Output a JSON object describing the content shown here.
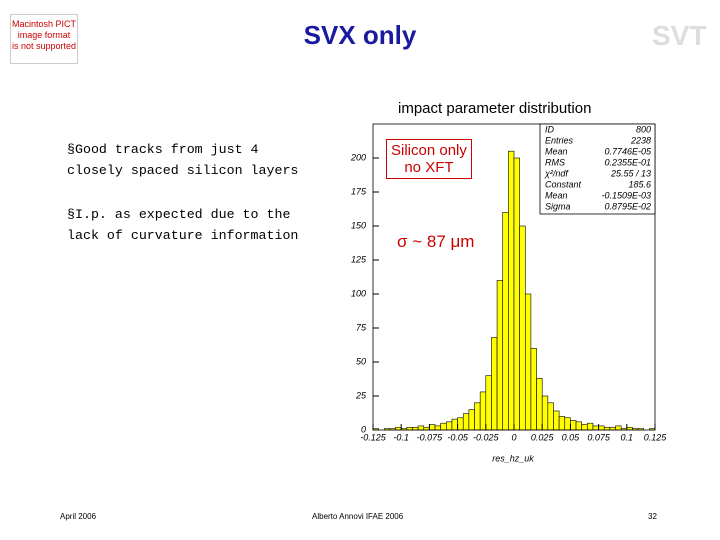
{
  "header": {
    "placeholder_image": [
      "Macintosh PICT",
      "image format",
      "is not supported"
    ],
    "title": "SVX only",
    "logo": "SVT"
  },
  "bullets": [
    "§Good tracks from just 4 closely spaced silicon layers",
    "§I.p. as expected due to the lack of curvature information"
  ],
  "chart_data": {
    "type": "histogram",
    "title": "impact parameter distribution",
    "bins": [
      -0.125,
      -0.12,
      -0.115,
      -0.11,
      -0.105,
      -0.1,
      -0.095,
      -0.09,
      -0.085,
      -0.08,
      -0.075,
      -0.07,
      -0.065,
      -0.06,
      -0.055,
      -0.05,
      -0.045,
      -0.04,
      -0.035,
      -0.03,
      -0.025,
      -0.02,
      -0.015,
      -0.01,
      -0.005,
      0,
      0.005,
      0.01,
      0.015,
      0.02,
      0.025,
      0.03,
      0.035,
      0.04,
      0.045,
      0.05,
      0.055,
      0.06,
      0.065,
      0.07,
      0.075,
      0.08,
      0.085,
      0.09,
      0.095,
      0.1,
      0.105,
      0.11,
      0.115,
      0.12,
      0.125
    ],
    "values": [
      1,
      0,
      1,
      1,
      2,
      1,
      2,
      2,
      3,
      2,
      4,
      3,
      5,
      6,
      8,
      9,
      12,
      15,
      20,
      28,
      40,
      68,
      110,
      160,
      205,
      200,
      150,
      100,
      60,
      38,
      25,
      20,
      14,
      10,
      9,
      7,
      6,
      4,
      5,
      3,
      3,
      2,
      2,
      3,
      1,
      2,
      1,
      1,
      0,
      1
    ],
    "color": "#ffff00",
    "xlim": [
      -0.125,
      0.125
    ],
    "xticks": [
      -0.125,
      -0.1,
      -0.075,
      -0.05,
      -0.025,
      0,
      0.025,
      0.05,
      0.075,
      0.1,
      0.125
    ],
    "ylim": [
      0,
      225
    ],
    "yticks": [
      0,
      25,
      50,
      75,
      100,
      125,
      150,
      175,
      200
    ],
    "x_label": "res_hz_uk",
    "stats": [
      [
        "ID",
        "800"
      ],
      [
        "Entries",
        "2238"
      ],
      [
        "Mean",
        "0.7746E-05"
      ],
      [
        "RMS",
        "0.2355E-01"
      ],
      [
        "χ²/ndf",
        "25.55 / 13"
      ],
      [
        "Constant",
        "185.6"
      ],
      [
        "Mean",
        "-0.1509E-03"
      ],
      [
        "Sigma",
        "0.8795E-02"
      ]
    ],
    "annotation": [
      "Silicon only",
      "no XFT"
    ],
    "sigma_label": "σ ~ 87 μm"
  },
  "footer": {
    "left": "April 2006",
    "center": "Alberto Annovi IFAE 2006",
    "page": "32"
  }
}
